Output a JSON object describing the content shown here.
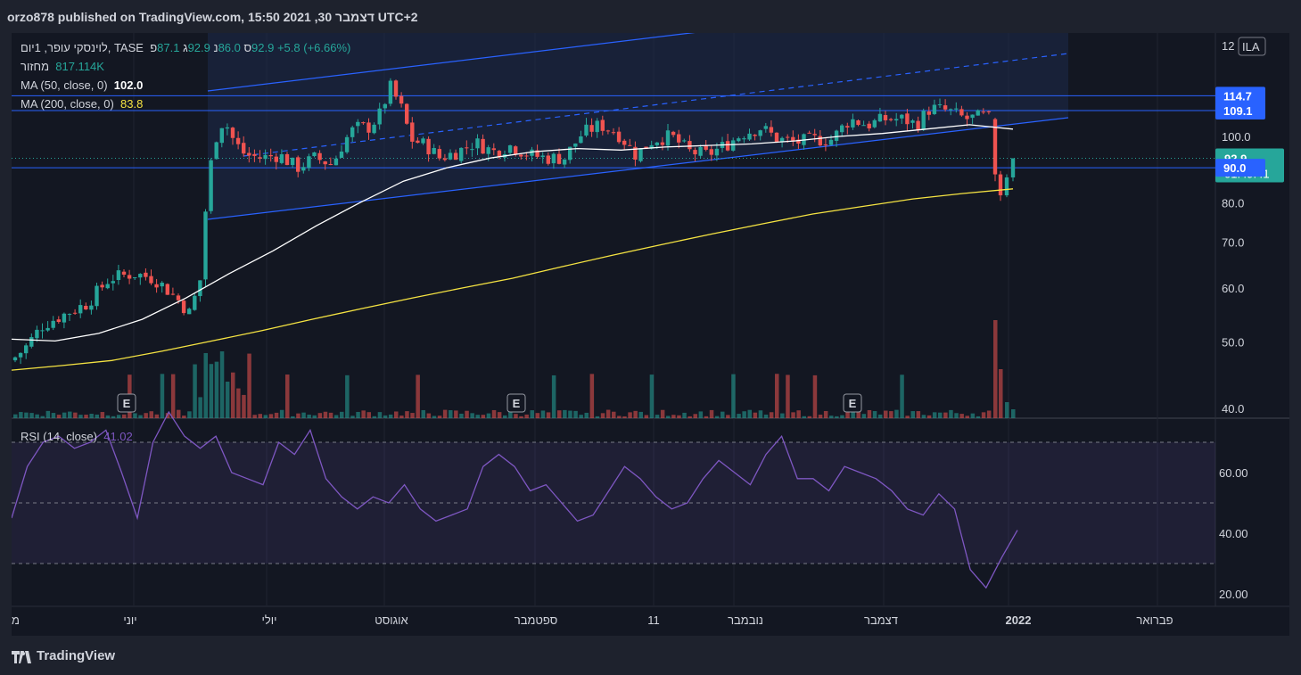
{
  "header": {
    "title": "orzo878 published on TradingView.com, 15:50 2021 ,30 דצמבר UTC+2"
  },
  "legend": {
    "symbol": "לוינסקי עופר, 1יום, TASE",
    "o_label": "פ",
    "o_value": "87.1",
    "h_label": "ג",
    "h_value": "92.9",
    "l_label": "נ",
    "l_value": "86.0",
    "c_label": "ס",
    "c_value": "92.9",
    "change": "+5.8 (+6.66%)",
    "volume_label": "מחזור",
    "volume_value": "817.114K",
    "ma50_label": "MA (50, close, 0)",
    "ma50_value": "102.0",
    "ma200_label": "MA (200, close, 0)",
    "ma200_value": "83.8",
    "rsi_label": "RSI (14, close)",
    "rsi_value": "41.02"
  },
  "colors": {
    "up": "#26a69a",
    "down": "#ef5350",
    "ma50": "#ffffff",
    "ma200": "#f5e342",
    "rsi": "#7e57c2",
    "hline": "#2962ff",
    "channel": "#2962ff"
  },
  "price_axis": {
    "currency": "ILA",
    "top_partial": "12",
    "ticks": [
      "100.0",
      "80.0",
      "70.0",
      "60.0",
      "50.0",
      "40.0"
    ],
    "hline_labels": [
      "114.7",
      "109.1",
      "90.0"
    ],
    "last_price": "92.9",
    "countdown": "01:49:41"
  },
  "rsi_axis": {
    "ticks": [
      "60.00",
      "40.00",
      "20.00"
    ]
  },
  "time_axis": {
    "labels": [
      "מ",
      "יוני",
      "יולי",
      "אוגוסט",
      "ספטמבר",
      "11",
      "נובמבר",
      "דצמבר",
      "2022",
      "פברואר"
    ]
  },
  "earnings_markers": [
    "E",
    "E",
    "E"
  ],
  "footer": {
    "brand": "TradingView"
  },
  "chart_data": {
    "type": "candlestick",
    "symbol": "לוינסקי עופר",
    "interval": "1יום",
    "exchange": "TASE",
    "y_scale": "log",
    "price_range": [
      38,
      125
    ],
    "last": {
      "open": 87.1,
      "high": 92.9,
      "low": 86.0,
      "close": 92.9,
      "change": 5.8,
      "change_pct": 6.66,
      "volume": "817.114K"
    },
    "horizontal_lines": [
      114.7,
      109.1,
      90.0
    ],
    "ma50_last": 102.0,
    "ma200_last": 83.8,
    "rsi_last": 41.02,
    "rsi_levels": [
      70,
      50,
      30
    ],
    "series_ma50_approx": [
      50.5,
      50.2,
      51.5,
      54,
      58,
      63,
      68,
      74,
      80,
      86,
      90,
      93,
      95,
      96,
      95.5,
      96.5,
      97,
      97.5,
      98.5,
      100,
      101,
      102.5,
      104,
      102.5
    ],
    "series_ma200_approx": [
      45.5,
      46.2,
      47,
      48.5,
      50.2,
      52,
      54,
      56,
      58,
      60,
      62,
      64.5,
      67,
      69.5,
      72,
      74.5,
      77,
      79,
      81,
      82.5,
      83.8
    ],
    "rsi_series_approx": [
      45,
      62,
      70,
      72,
      68,
      70,
      74,
      60,
      45,
      70,
      80,
      72,
      68,
      72,
      60,
      58,
      56,
      70,
      66,
      74,
      58,
      52,
      48,
      52,
      50,
      56,
      48,
      44,
      46,
      48,
      62,
      66,
      62,
      54,
      56,
      50,
      44,
      46,
      54,
      62,
      58,
      52,
      48,
      50,
      58,
      64,
      60,
      56,
      66,
      72,
      58,
      58,
      54,
      62,
      60,
      58,
      54,
      48,
      46,
      53,
      48,
      28,
      22,
      32,
      41
    ]
  }
}
